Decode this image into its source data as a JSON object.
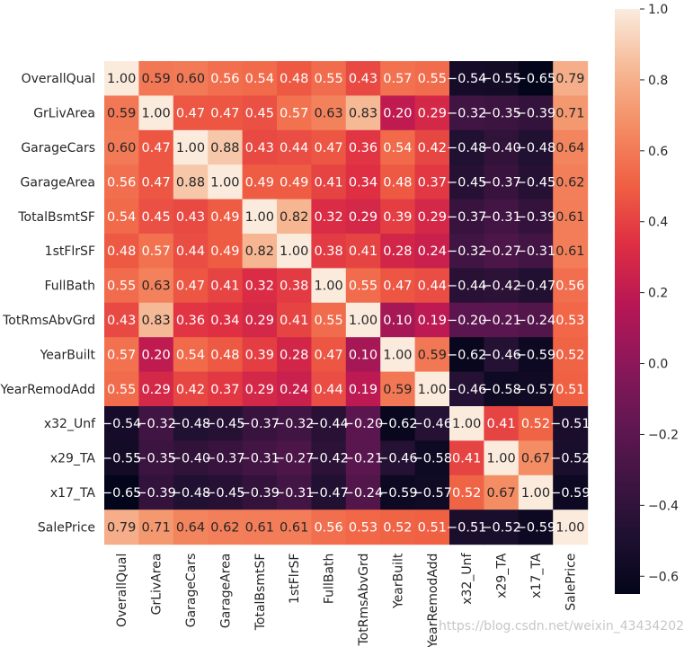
{
  "chart_data": {
    "type": "heatmap",
    "title": "",
    "xlabel": "",
    "ylabel": "",
    "variables": [
      "OverallQual",
      "GrLivArea",
      "GarageCars",
      "GarageArea",
      "TotalBsmtSF",
      "1stFlrSF",
      "FullBath",
      "TotRmsAbvGrd",
      "YearBuilt",
      "YearRemodAdd",
      "x32_Unf",
      "x29_TA",
      "x17_TA",
      "SalePrice"
    ],
    "matrix": [
      [
        1.0,
        0.59,
        0.6,
        0.56,
        0.54,
        0.48,
        0.55,
        0.43,
        0.57,
        0.55,
        -0.54,
        -0.55,
        -0.65,
        0.79
      ],
      [
        0.59,
        1.0,
        0.47,
        0.47,
        0.45,
        0.57,
        0.63,
        0.83,
        0.2,
        0.29,
        -0.32,
        -0.35,
        -0.39,
        0.71
      ],
      [
        0.6,
        0.47,
        1.0,
        0.88,
        0.43,
        0.44,
        0.47,
        0.36,
        0.54,
        0.42,
        -0.48,
        -0.4,
        -0.48,
        0.64
      ],
      [
        0.56,
        0.47,
        0.88,
        1.0,
        0.49,
        0.49,
        0.41,
        0.34,
        0.48,
        0.37,
        -0.45,
        -0.37,
        -0.45,
        0.62
      ],
      [
        0.54,
        0.45,
        0.43,
        0.49,
        1.0,
        0.82,
        0.32,
        0.29,
        0.39,
        0.29,
        -0.37,
        -0.31,
        -0.39,
        0.61
      ],
      [
        0.48,
        0.57,
        0.44,
        0.49,
        0.82,
        1.0,
        0.38,
        0.41,
        0.28,
        0.24,
        -0.32,
        -0.27,
        -0.31,
        0.61
      ],
      [
        0.55,
        0.63,
        0.47,
        0.41,
        0.32,
        0.38,
        1.0,
        0.55,
        0.47,
        0.44,
        -0.44,
        -0.42,
        -0.47,
        0.56
      ],
      [
        0.43,
        0.83,
        0.36,
        0.34,
        0.29,
        0.41,
        0.55,
        1.0,
        0.1,
        0.19,
        -0.2,
        -0.21,
        -0.24,
        0.53
      ],
      [
        0.57,
        0.2,
        0.54,
        0.48,
        0.39,
        0.28,
        0.47,
        0.1,
        1.0,
        0.59,
        -0.62,
        -0.46,
        -0.59,
        0.52
      ],
      [
        0.55,
        0.29,
        0.42,
        0.37,
        0.29,
        0.24,
        0.44,
        0.19,
        0.59,
        1.0,
        -0.46,
        -0.58,
        -0.57,
        0.51
      ],
      [
        -0.54,
        -0.32,
        -0.48,
        -0.45,
        -0.37,
        -0.32,
        -0.44,
        -0.2,
        -0.62,
        -0.46,
        1.0,
        0.41,
        0.52,
        -0.51
      ],
      [
        -0.55,
        -0.35,
        -0.4,
        -0.37,
        -0.31,
        -0.27,
        -0.42,
        -0.21,
        -0.46,
        -0.58,
        0.41,
        1.0,
        0.67,
        -0.52
      ],
      [
        -0.65,
        -0.39,
        -0.48,
        -0.45,
        -0.39,
        -0.31,
        -0.47,
        -0.24,
        -0.59,
        -0.57,
        0.52,
        0.67,
        1.0,
        -0.59
      ],
      [
        0.79,
        0.71,
        0.64,
        0.62,
        0.61,
        0.61,
        0.56,
        0.53,
        0.52,
        0.51,
        -0.51,
        -0.52,
        -0.59,
        1.0
      ]
    ],
    "value_range": [
      -0.65,
      1.0
    ],
    "colorbar": {
      "ticks": [
        1.0,
        0.8,
        0.6,
        0.4,
        0.2,
        0.0,
        -0.2,
        -0.4,
        -0.6
      ],
      "tick_labels": [
        "1.0",
        "0.8",
        "0.6",
        "0.4",
        "0.2",
        "0.0",
        "−0.2",
        "−0.4",
        "−0.6"
      ],
      "colormap": "rocket",
      "placement": "right"
    },
    "annotations_format": "0.00",
    "grid": false
  },
  "watermark": "https://blog.csdn.net/weixin_43434202"
}
